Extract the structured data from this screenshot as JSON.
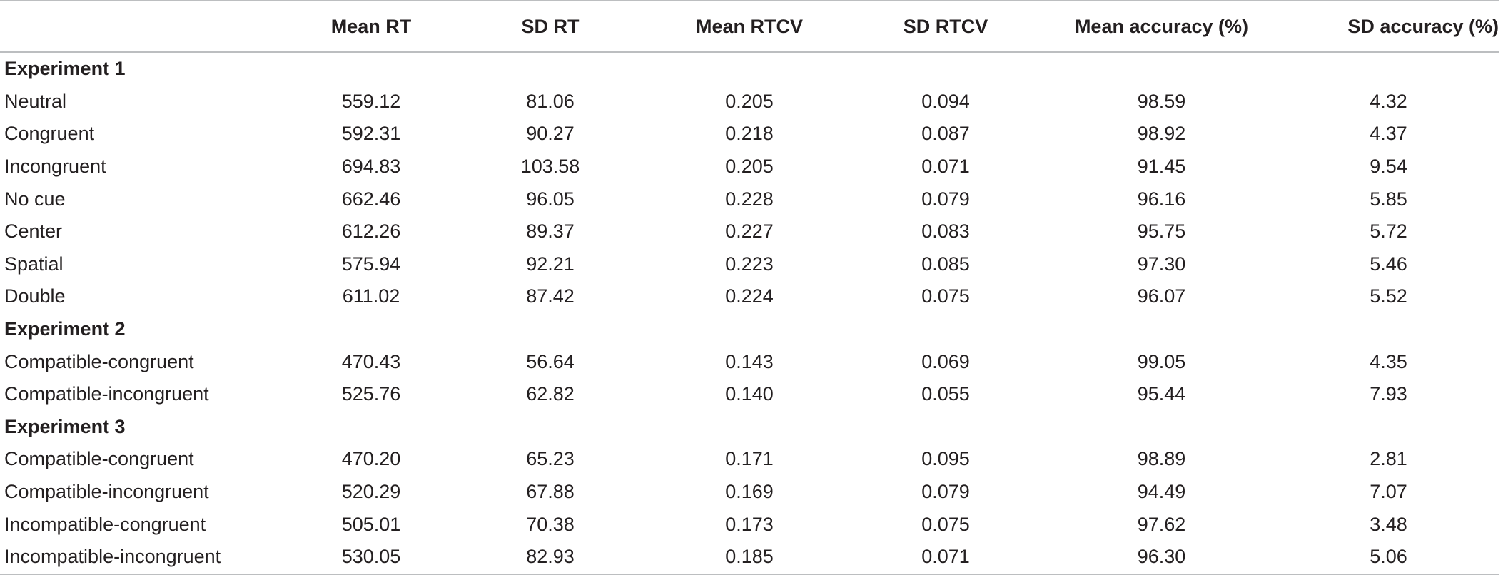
{
  "table": {
    "headers": [
      "",
      "Mean RT",
      "SD RT",
      "Mean RTCV",
      "SD RTCV",
      "Mean accuracy (%)",
      "SD accuracy (%)"
    ],
    "sections": [
      {
        "title": "Experiment 1",
        "rows": [
          [
            "Neutral",
            "559.12",
            "81.06",
            "0.205",
            "0.094",
            "98.59",
            "4.32"
          ],
          [
            "Congruent",
            "592.31",
            "90.27",
            "0.218",
            "0.087",
            "98.92",
            "4.37"
          ],
          [
            "Incongruent",
            "694.83",
            "103.58",
            "0.205",
            "0.071",
            "91.45",
            "9.54"
          ],
          [
            "No cue",
            "662.46",
            "96.05",
            "0.228",
            "0.079",
            "96.16",
            "5.85"
          ],
          [
            "Center",
            "612.26",
            "89.37",
            "0.227",
            "0.083",
            "95.75",
            "5.72"
          ],
          [
            "Spatial",
            "575.94",
            "92.21",
            "0.223",
            "0.085",
            "97.30",
            "5.46"
          ],
          [
            "Double",
            "611.02",
            "87.42",
            "0.224",
            "0.075",
            "96.07",
            "5.52"
          ]
        ]
      },
      {
        "title": "Experiment 2",
        "rows": [
          [
            "Compatible-congruent",
            "470.43",
            "56.64",
            "0.143",
            "0.069",
            "99.05",
            "4.35"
          ],
          [
            "Compatible-incongruent",
            "525.76",
            "62.82",
            "0.140",
            "0.055",
            "95.44",
            "7.93"
          ]
        ]
      },
      {
        "title": "Experiment 3",
        "rows": [
          [
            "Compatible-congruent",
            "470.20",
            "65.23",
            "0.171",
            "0.095",
            "98.89",
            "2.81"
          ],
          [
            "Compatible-incongruent",
            "520.29",
            "67.88",
            "0.169",
            "0.079",
            "94.49",
            "7.07"
          ],
          [
            "Incompatible-congruent",
            "505.01",
            "70.38",
            "0.173",
            "0.075",
            "97.62",
            "3.48"
          ],
          [
            "Incompatible-incongruent",
            "530.05",
            "82.93",
            "0.185",
            "0.071",
            "96.30",
            "5.06"
          ]
        ]
      }
    ]
  }
}
